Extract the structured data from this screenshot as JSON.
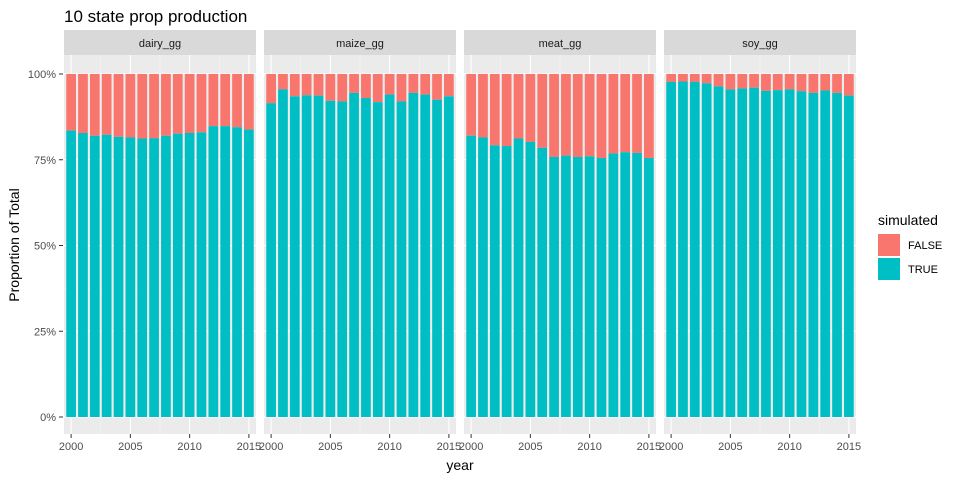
{
  "chart_data": {
    "type": "bar",
    "stacked": "proportion",
    "title": "10 state prop production",
    "xlabel": "year",
    "ylabel": "Proportion of Total",
    "x": [
      2000,
      2001,
      2002,
      2003,
      2004,
      2005,
      2006,
      2007,
      2008,
      2009,
      2010,
      2011,
      2012,
      2013,
      2014,
      2015
    ],
    "x_ticks": [
      "2000",
      "2005",
      "2010",
      "2015"
    ],
    "y_ticks": [
      "0%",
      "25%",
      "50%",
      "75%",
      "100%"
    ],
    "ylim": [
      0,
      1
    ],
    "grid": true,
    "legend": {
      "title": "simulated",
      "placement": "right",
      "entries": [
        {
          "label": "FALSE",
          "color": "#F8766D"
        },
        {
          "label": "TRUE",
          "color": "#00BFC4"
        }
      ]
    },
    "facets": [
      {
        "name": "dairy_gg",
        "true_share": [
          0.835,
          0.828,
          0.82,
          0.823,
          0.817,
          0.815,
          0.812,
          0.813,
          0.82,
          0.826,
          0.828,
          0.83,
          0.848,
          0.848,
          0.845,
          0.838
        ]
      },
      {
        "name": "maize_gg",
        "true_share": [
          0.915,
          0.955,
          0.935,
          0.938,
          0.937,
          0.922,
          0.92,
          0.945,
          0.93,
          0.918,
          0.94,
          0.92,
          0.945,
          0.94,
          0.925,
          0.935
        ]
      },
      {
        "name": "meat_gg",
        "true_share": [
          0.82,
          0.815,
          0.792,
          0.79,
          0.812,
          0.802,
          0.785,
          0.758,
          0.762,
          0.758,
          0.76,
          0.755,
          0.768,
          0.772,
          0.77,
          0.755
        ]
      },
      {
        "name": "soy_gg",
        "true_share": [
          0.977,
          0.978,
          0.977,
          0.973,
          0.964,
          0.955,
          0.958,
          0.96,
          0.951,
          0.953,
          0.955,
          0.95,
          0.945,
          0.952,
          0.945,
          0.937
        ]
      }
    ]
  },
  "colors": {
    "panel_bg": "#EBEBEB",
    "strip_bg": "#D9D9D9",
    "grid_major": "#FFFFFF",
    "false_fill": "#F8766D",
    "true_fill": "#00BFC4"
  }
}
